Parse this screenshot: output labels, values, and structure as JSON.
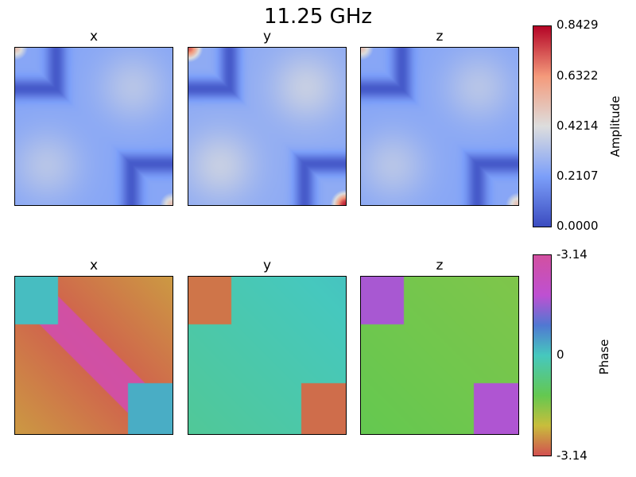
{
  "title": "11.25 GHz",
  "amplitude": {
    "label": "Amplitude",
    "panels": [
      "x",
      "y",
      "z"
    ],
    "ticks": [
      "0.8429",
      "0.6322",
      "0.4214",
      "0.2107",
      "0.0000"
    ],
    "range": [
      0.0,
      0.8429
    ],
    "colormap": "coolwarm"
  },
  "phase": {
    "label": "Phase",
    "panels": [
      "x",
      "y",
      "z"
    ],
    "ticks": [
      "-3.14",
      "0",
      "-3.14"
    ],
    "range": [
      -3.14,
      3.14
    ],
    "colormap": "hsv"
  },
  "chart_data": [
    {
      "type": "heatmap",
      "title": "11.25 GHz",
      "subplots": [
        {
          "row": "amplitude",
          "title": "x",
          "colorbar": "Amplitude"
        },
        {
          "row": "amplitude",
          "title": "y",
          "colorbar": "Amplitude"
        },
        {
          "row": "amplitude",
          "title": "z",
          "colorbar": "Amplitude"
        },
        {
          "row": "phase",
          "title": "x",
          "colorbar": "Phase"
        },
        {
          "row": "phase",
          "title": "y",
          "colorbar": "Phase"
        },
        {
          "row": "phase",
          "title": "z",
          "colorbar": "Phase"
        }
      ],
      "amplitude_colorbar": {
        "min": 0.0,
        "max": 0.8429,
        "ticks": [
          0.8429,
          0.6322,
          0.4214,
          0.2107,
          0.0
        ]
      },
      "phase_colorbar": {
        "ticks": [
          "-3.14",
          "0",
          "-3.14"
        ]
      },
      "axes_ticks": false
    }
  ]
}
